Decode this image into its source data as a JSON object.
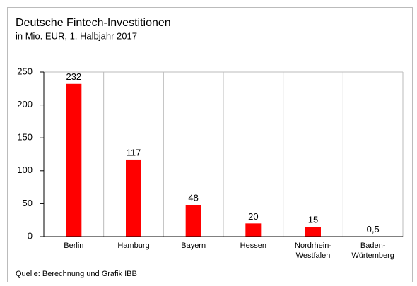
{
  "chart_data": {
    "type": "bar",
    "title": "Deutsche Fintech-Investitionen",
    "subtitle": "in Mio. EUR, 1. Halbjahr 2017",
    "categories": [
      [
        "Berlin"
      ],
      [
        "Hamburg"
      ],
      [
        "Bayern"
      ],
      [
        "Hessen"
      ],
      [
        "Nordrhein-",
        "Westfalen"
      ],
      [
        "Baden-",
        "Würtemberg"
      ]
    ],
    "values": [
      232,
      117,
      48,
      20,
      15,
      0.5
    ],
    "value_labels": [
      "232",
      "117",
      "48",
      "20",
      "15",
      "0,5"
    ],
    "color": "#ff0000",
    "ylim": [
      0,
      250
    ],
    "yticks": [
      0,
      50,
      100,
      150,
      200,
      250
    ],
    "source": "Quelle: Berechnung und Grafik IBB"
  }
}
